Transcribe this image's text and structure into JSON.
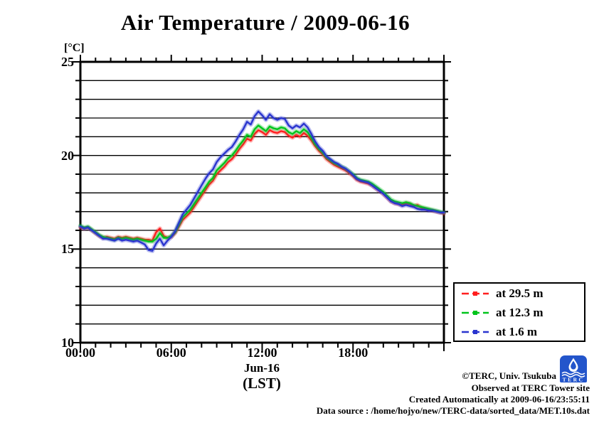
{
  "chart_data": {
    "type": "line",
    "title": "Air Temperature / 2009-06-16",
    "unit_label": "[°C]",
    "xlabel_date": "Jun-16",
    "xlabel_unit": "(LST)",
    "ylim": [
      10,
      25
    ],
    "xlim_hours": [
      0,
      24
    ],
    "grid": "horizontal black lines every 1 degree, no vertical gridlines",
    "legend_position": "outside right, boxed",
    "y_major_ticks": [
      25,
      20,
      15,
      10
    ],
    "y_minor_step": 1,
    "x_major_ticks": [
      {
        "hour": 0,
        "label": "00:00"
      },
      {
        "hour": 6,
        "label": "06:00"
      },
      {
        "hour": 12,
        "label": "12:00"
      },
      {
        "hour": 18,
        "label": "18:00"
      }
    ],
    "x_minor_step_hours": 1,
    "x_step_hours": 0.25,
    "series": [
      {
        "name": "at 29.5 m",
        "color": "#ff1f1f",
        "values": [
          16.15,
          16.1,
          16.15,
          16.0,
          15.85,
          15.7,
          15.6,
          15.65,
          15.6,
          15.55,
          15.65,
          15.6,
          15.65,
          15.6,
          15.55,
          15.6,
          15.55,
          15.5,
          15.5,
          15.45,
          15.9,
          16.1,
          15.7,
          15.6,
          15.65,
          15.85,
          16.2,
          16.55,
          16.75,
          16.95,
          17.25,
          17.55,
          17.85,
          18.15,
          18.45,
          18.65,
          19.0,
          19.2,
          19.4,
          19.65,
          19.8,
          20.05,
          20.35,
          20.6,
          20.9,
          20.8,
          21.15,
          21.35,
          21.25,
          21.1,
          21.35,
          21.25,
          21.2,
          21.3,
          21.25,
          21.05,
          20.95,
          21.1,
          21.0,
          21.2,
          21.05,
          20.8,
          20.5,
          20.25,
          20.05,
          19.8,
          19.65,
          19.5,
          19.4,
          19.3,
          19.2,
          19.05,
          18.9,
          18.7,
          18.6,
          18.55,
          18.5,
          18.4,
          18.25,
          18.1,
          17.95,
          17.75,
          17.55,
          17.45,
          17.4,
          17.35,
          17.45,
          17.4,
          17.3,
          17.35,
          17.2,
          17.15,
          17.1,
          17.05,
          17.0,
          16.95,
          16.9
        ]
      },
      {
        "name": "at 12.3 m",
        "color": "#00c41c",
        "values": [
          16.25,
          16.15,
          16.2,
          16.05,
          15.9,
          15.75,
          15.65,
          15.6,
          15.55,
          15.5,
          15.6,
          15.55,
          15.6,
          15.55,
          15.5,
          15.55,
          15.5,
          15.45,
          15.4,
          15.4,
          15.55,
          15.85,
          15.6,
          15.6,
          15.7,
          15.9,
          16.3,
          16.7,
          16.9,
          17.1,
          17.4,
          17.7,
          18.0,
          18.3,
          18.6,
          18.8,
          19.2,
          19.4,
          19.6,
          19.85,
          20.0,
          20.25,
          20.55,
          20.8,
          21.1,
          21.0,
          21.4,
          21.6,
          21.45,
          21.3,
          21.55,
          21.45,
          21.4,
          21.5,
          21.45,
          21.25,
          21.15,
          21.3,
          21.2,
          21.4,
          21.25,
          20.95,
          20.6,
          20.35,
          20.15,
          19.9,
          19.75,
          19.6,
          19.5,
          19.4,
          19.3,
          19.15,
          19.0,
          18.8,
          18.7,
          18.65,
          18.6,
          18.5,
          18.35,
          18.2,
          18.05,
          17.85,
          17.65,
          17.55,
          17.5,
          17.45,
          17.5,
          17.45,
          17.35,
          17.3,
          17.25,
          17.2,
          17.15,
          17.1,
          17.05,
          17.0,
          16.95
        ]
      },
      {
        "name": "at 1.6 m",
        "color": "#2a35cf",
        "values": [
          16.2,
          16.1,
          16.15,
          16.0,
          15.85,
          15.7,
          15.55,
          15.55,
          15.5,
          15.45,
          15.55,
          15.45,
          15.5,
          15.45,
          15.4,
          15.45,
          15.35,
          15.25,
          14.95,
          14.9,
          15.3,
          15.55,
          15.2,
          15.45,
          15.65,
          15.95,
          16.4,
          16.85,
          17.1,
          17.35,
          17.7,
          18.05,
          18.4,
          18.75,
          19.05,
          19.25,
          19.65,
          19.9,
          20.1,
          20.3,
          20.45,
          20.75,
          21.1,
          21.4,
          21.8,
          21.65,
          22.1,
          22.35,
          22.15,
          21.9,
          22.2,
          22.0,
          21.9,
          22.0,
          21.95,
          21.6,
          21.45,
          21.6,
          21.5,
          21.7,
          21.5,
          21.15,
          20.75,
          20.45,
          20.25,
          19.95,
          19.8,
          19.65,
          19.55,
          19.4,
          19.3,
          19.15,
          18.95,
          18.75,
          18.65,
          18.6,
          18.55,
          18.4,
          18.25,
          18.1,
          17.95,
          17.75,
          17.55,
          17.45,
          17.4,
          17.3,
          17.35,
          17.3,
          17.25,
          17.15,
          17.1,
          17.1,
          17.05,
          17.05,
          17.0,
          16.95,
          16.95
        ]
      }
    ]
  },
  "credits": {
    "line1": "©TERC, Univ. Tsukuba",
    "line2": "Observed at TERC Tower site",
    "line3": "Created Automatically at 2009-06-16/23:55:11",
    "line4": "Data source : /home/hojyo/new/TERC-data/sorted_data/MET.10s.dat"
  },
  "logo": {
    "text": "TERC",
    "color": "#2355cb"
  }
}
